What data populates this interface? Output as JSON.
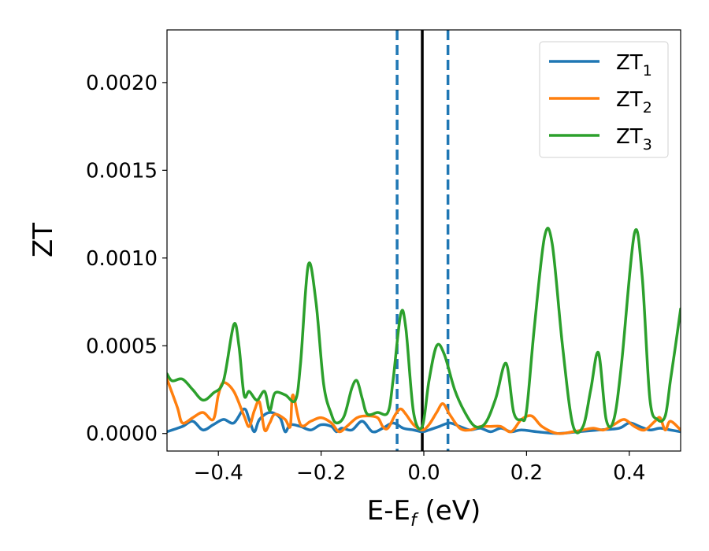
{
  "chart_data": {
    "type": "line",
    "title": "",
    "xlabel": "E-E",
    "xlabel_sub": "f",
    "xlabel_suffix": " (eV)",
    "ylabel": "ZT",
    "xlim": [
      -0.5,
      0.5
    ],
    "ylim": [
      -0.0001,
      0.0023
    ],
    "x_ticks": [
      -0.4,
      -0.2,
      0.0,
      0.2,
      0.4
    ],
    "x_tick_labels": [
      "−0.4",
      "−0.2",
      "0.0",
      "0.2",
      "0.4"
    ],
    "y_ticks": [
      0.0,
      0.0005,
      0.001,
      0.0015,
      0.002
    ],
    "y_tick_labels": [
      "0.0000",
      "0.0005",
      "0.0010",
      "0.0015",
      "0.0020"
    ],
    "grid": false,
    "legend_position": "top-right",
    "vlines": [
      {
        "x": -0.052,
        "style": "dashed",
        "color": "#1f77b4"
      },
      {
        "x": 0.047,
        "style": "dashed",
        "color": "#1f77b4"
      },
      {
        "x": -0.003,
        "style": "solid",
        "color": "#000000"
      }
    ],
    "series": [
      {
        "name": "ZT",
        "name_sub": "1",
        "color": "#1f77b4",
        "points": [
          [
            -0.5,
            1e-05
          ],
          [
            -0.47,
            4e-05
          ],
          [
            -0.45,
            7e-05
          ],
          [
            -0.43,
            2e-05
          ],
          [
            -0.41,
            5e-05
          ],
          [
            -0.39,
            8e-05
          ],
          [
            -0.37,
            6e-05
          ],
          [
            -0.35,
            0.00014
          ],
          [
            -0.34,
            8e-05
          ],
          [
            -0.33,
            1e-05
          ],
          [
            -0.32,
            8e-05
          ],
          [
            -0.3,
            0.00012
          ],
          [
            -0.28,
            9e-05
          ],
          [
            -0.27,
            1e-05
          ],
          [
            -0.26,
            5e-05
          ],
          [
            -0.24,
            4e-05
          ],
          [
            -0.22,
            2e-05
          ],
          [
            -0.2,
            5e-05
          ],
          [
            -0.18,
            4e-05
          ],
          [
            -0.17,
            1e-05
          ],
          [
            -0.16,
            3e-05
          ],
          [
            -0.14,
            2e-05
          ],
          [
            -0.12,
            7e-05
          ],
          [
            -0.1,
            1e-05
          ],
          [
            -0.08,
            3e-05
          ],
          [
            -0.06,
            6e-05
          ],
          [
            -0.04,
            3e-05
          ],
          [
            -0.02,
            2e-05
          ],
          [
            -0.003,
            1e-05
          ],
          [
            0.01,
            2e-05
          ],
          [
            0.03,
            4e-05
          ],
          [
            0.05,
            6e-05
          ],
          [
            0.07,
            4e-05
          ],
          [
            0.09,
            2e-05
          ],
          [
            0.11,
            3e-05
          ],
          [
            0.13,
            1e-05
          ],
          [
            0.15,
            3e-05
          ],
          [
            0.17,
            1e-05
          ],
          [
            0.19,
            2e-05
          ],
          [
            0.22,
            1e-05
          ],
          [
            0.26,
            0.0
          ],
          [
            0.3,
            1e-05
          ],
          [
            0.34,
            2e-05
          ],
          [
            0.38,
            3e-05
          ],
          [
            0.4,
            6e-05
          ],
          [
            0.42,
            4e-05
          ],
          [
            0.44,
            2e-05
          ],
          [
            0.46,
            3e-05
          ],
          [
            0.48,
            2e-05
          ],
          [
            0.5,
            1e-05
          ]
        ]
      },
      {
        "name": "ZT",
        "name_sub": "2",
        "color": "#ff7f0e",
        "points": [
          [
            -0.5,
            0.00031
          ],
          [
            -0.48,
            0.00015
          ],
          [
            -0.47,
            6e-05
          ],
          [
            -0.45,
            9e-05
          ],
          [
            -0.43,
            0.00012
          ],
          [
            -0.41,
            8e-05
          ],
          [
            -0.4,
            0.00022
          ],
          [
            -0.39,
            0.00029
          ],
          [
            -0.37,
            0.00024
          ],
          [
            -0.35,
            0.0001
          ],
          [
            -0.34,
            4e-05
          ],
          [
            -0.33,
            0.00013
          ],
          [
            -0.32,
            0.00018
          ],
          [
            -0.31,
            2e-05
          ],
          [
            -0.3,
            6e-05
          ],
          [
            -0.29,
            0.00011
          ],
          [
            -0.27,
            8e-05
          ],
          [
            -0.26,
            4e-05
          ],
          [
            -0.255,
            0.00022
          ],
          [
            -0.24,
            5e-05
          ],
          [
            -0.22,
            7e-05
          ],
          [
            -0.2,
            9e-05
          ],
          [
            -0.18,
            6e-05
          ],
          [
            -0.165,
            1e-05
          ],
          [
            -0.15,
            4e-05
          ],
          [
            -0.13,
            9e-05
          ],
          [
            -0.11,
            0.0001
          ],
          [
            -0.09,
            9e-05
          ],
          [
            -0.08,
            4e-05
          ],
          [
            -0.07,
            3e-05
          ],
          [
            -0.055,
            0.00011
          ],
          [
            -0.045,
            0.00014
          ],
          [
            -0.035,
            0.00011
          ],
          [
            -0.02,
            5e-05
          ],
          [
            -0.003,
            2e-05
          ],
          [
            0.01,
            5e-05
          ],
          [
            0.025,
            0.00012
          ],
          [
            0.037,
            0.00017
          ],
          [
            0.05,
            0.00011
          ],
          [
            0.07,
            3e-05
          ],
          [
            0.09,
            2e-05
          ],
          [
            0.11,
            4e-05
          ],
          [
            0.13,
            4e-05
          ],
          [
            0.15,
            4e-05
          ],
          [
            0.17,
            1e-05
          ],
          [
            0.19,
            8e-05
          ],
          [
            0.21,
            0.0001
          ],
          [
            0.23,
            4e-05
          ],
          [
            0.26,
            0.0
          ],
          [
            0.29,
            1e-05
          ],
          [
            0.31,
            2e-05
          ],
          [
            0.33,
            3e-05
          ],
          [
            0.35,
            2e-05
          ],
          [
            0.37,
            5e-05
          ],
          [
            0.39,
            8e-05
          ],
          [
            0.41,
            4e-05
          ],
          [
            0.43,
            2e-05
          ],
          [
            0.45,
            7e-05
          ],
          [
            0.46,
            9e-05
          ],
          [
            0.47,
            2e-05
          ],
          [
            0.48,
            7e-05
          ],
          [
            0.5,
            2e-05
          ]
        ]
      },
      {
        "name": "ZT",
        "name_sub": "3",
        "color": "#2ca02c",
        "points": [
          [
            -0.5,
            0.00034
          ],
          [
            -0.49,
            0.0003
          ],
          [
            -0.47,
            0.00031
          ],
          [
            -0.45,
            0.00025
          ],
          [
            -0.43,
            0.00019
          ],
          [
            -0.41,
            0.00023
          ],
          [
            -0.39,
            0.0003
          ],
          [
            -0.37,
            0.00062
          ],
          [
            -0.36,
            0.0005
          ],
          [
            -0.35,
            0.00022
          ],
          [
            -0.34,
            0.00024
          ],
          [
            -0.325,
            0.00019
          ],
          [
            -0.31,
            0.00024
          ],
          [
            -0.3,
            0.00013
          ],
          [
            -0.29,
            0.00023
          ],
          [
            -0.27,
            0.00022
          ],
          [
            -0.25,
            0.00019
          ],
          [
            -0.24,
            0.0004
          ],
          [
            -0.225,
            0.00096
          ],
          [
            -0.21,
            0.00075
          ],
          [
            -0.195,
            0.00028
          ],
          [
            -0.18,
            0.00011
          ],
          [
            -0.17,
            6e-05
          ],
          [
            -0.155,
            0.0001
          ],
          [
            -0.14,
            0.00026
          ],
          [
            -0.13,
            0.0003
          ],
          [
            -0.12,
            0.0002
          ],
          [
            -0.11,
            0.00011
          ],
          [
            -0.09,
            0.00012
          ],
          [
            -0.07,
            0.00012
          ],
          [
            -0.06,
            0.0003
          ],
          [
            -0.045,
            0.00068
          ],
          [
            -0.035,
            0.0006
          ],
          [
            -0.02,
            0.00012
          ],
          [
            -0.003,
            4e-05
          ],
          [
            0.01,
            0.0003
          ],
          [
            0.025,
            0.0005
          ],
          [
            0.04,
            0.00045
          ],
          [
            0.06,
            0.00025
          ],
          [
            0.08,
            0.00012
          ],
          [
            0.1,
            4e-05
          ],
          [
            0.12,
            6e-05
          ],
          [
            0.14,
            0.0002
          ],
          [
            0.16,
            0.0004
          ],
          [
            0.175,
            0.00012
          ],
          [
            0.19,
            8e-05
          ],
          [
            0.2,
            0.00013
          ],
          [
            0.215,
            0.0006
          ],
          [
            0.235,
            0.00112
          ],
          [
            0.25,
            0.00108
          ],
          [
            0.27,
            0.0005
          ],
          [
            0.29,
            5e-05
          ],
          [
            0.31,
            4e-05
          ],
          [
            0.325,
            0.00025
          ],
          [
            0.34,
            0.00046
          ],
          [
            0.355,
            8e-05
          ],
          [
            0.37,
            8e-05
          ],
          [
            0.385,
            0.0004
          ],
          [
            0.41,
            0.00114
          ],
          [
            0.425,
            0.0009
          ],
          [
            0.44,
            0.0002
          ],
          [
            0.455,
            8e-05
          ],
          [
            0.47,
            0.0001
          ],
          [
            0.48,
            0.0003
          ],
          [
            0.49,
            0.0005
          ],
          [
            0.5,
            0.00071
          ]
        ]
      }
    ]
  }
}
